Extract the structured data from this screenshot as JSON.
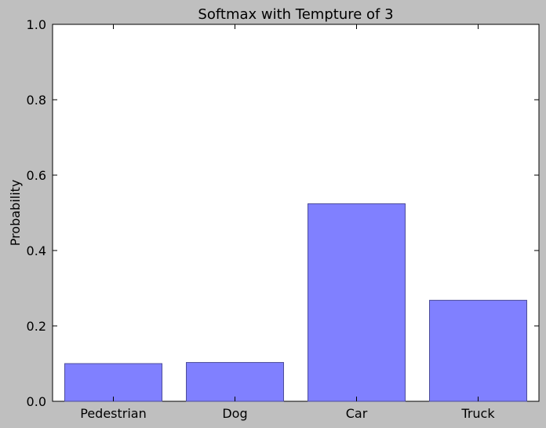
{
  "chart_data": {
    "type": "bar",
    "title": "Softmax with Tempture of 3",
    "xlabel": "",
    "ylabel": "Probability",
    "categories": [
      "Pedestrian",
      "Dog",
      "Car",
      "Truck"
    ],
    "values": [
      0.1,
      0.103,
      0.524,
      0.268
    ],
    "ylim": [
      0,
      1.0
    ],
    "yticks": [
      "0.0",
      "0.2",
      "0.4",
      "0.6",
      "0.8",
      "1.0"
    ],
    "grid": false,
    "bar_color": "#8080ff",
    "bar_edge_color": "#4d4d99",
    "background_color": "#bfbfbf",
    "plot_background_color": "#ffffff"
  }
}
